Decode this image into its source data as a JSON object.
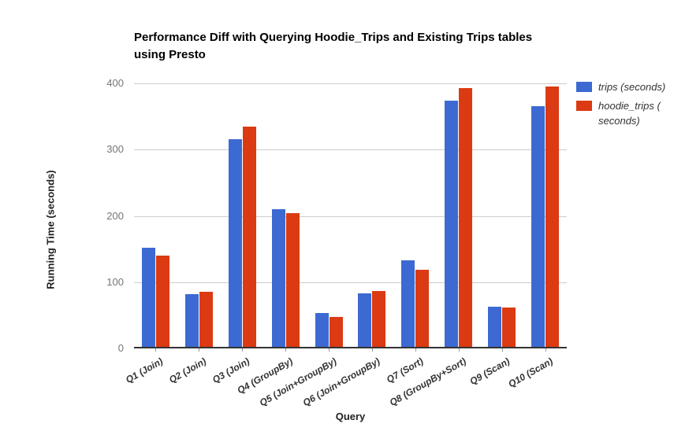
{
  "title": {
    "line1": "Performance Diff with Querying Hoodie_Trips and Existing Trips tables",
    "line2": "using Presto"
  },
  "axes": {
    "y_title": "Running Time (seconds)",
    "x_title": "Query"
  },
  "legend": {
    "items": [
      {
        "name": "trips (seconds)",
        "lines": [
          "trips (seconds)"
        ],
        "color": "#3C6AD2"
      },
      {
        "name": "hoodie_trips ( seconds)",
        "lines": [
          "hoodie_trips (",
          "seconds)"
        ],
        "color": "#DB3A13"
      }
    ]
  },
  "chart_data": {
    "type": "bar",
    "title": "Performance Diff with Querying Hoodie_Trips and Existing Trips tables using Presto",
    "categories": [
      "Q1 (Join)",
      "Q2 (Join)",
      "Q3 (Join)",
      "Q4 (GroupBy)",
      "Q5 (Join+GroupBy)",
      "Q6 (Join+GroupBy)",
      "Q7 (Sort)",
      "Q8 (GroupBy+Sort)",
      "Q9 (Scan)",
      "Q10 (Scan)"
    ],
    "series": [
      {
        "name": "trips (seconds)",
        "color": "#3C6AD2",
        "values": [
          150,
          80,
          313,
          208,
          51,
          81,
          131,
          371,
          61,
          363
        ]
      },
      {
        "name": "hoodie_trips ( seconds)",
        "color": "#DB3A13",
        "values": [
          138,
          83,
          332,
          202,
          45,
          84,
          116,
          390,
          59,
          393
        ]
      }
    ],
    "xlabel": "Query",
    "ylabel": "Running Time (seconds)",
    "ylim": [
      0,
      400
    ],
    "y_ticks": [
      0,
      100,
      200,
      300,
      400
    ],
    "grid": true,
    "legend_position": "right"
  },
  "colors": {
    "grid": "#cccccc",
    "axis_line": "#333333",
    "tick_label": "#757575",
    "category_label": "#333333",
    "title": "#000000",
    "background": "#ffffff"
  }
}
